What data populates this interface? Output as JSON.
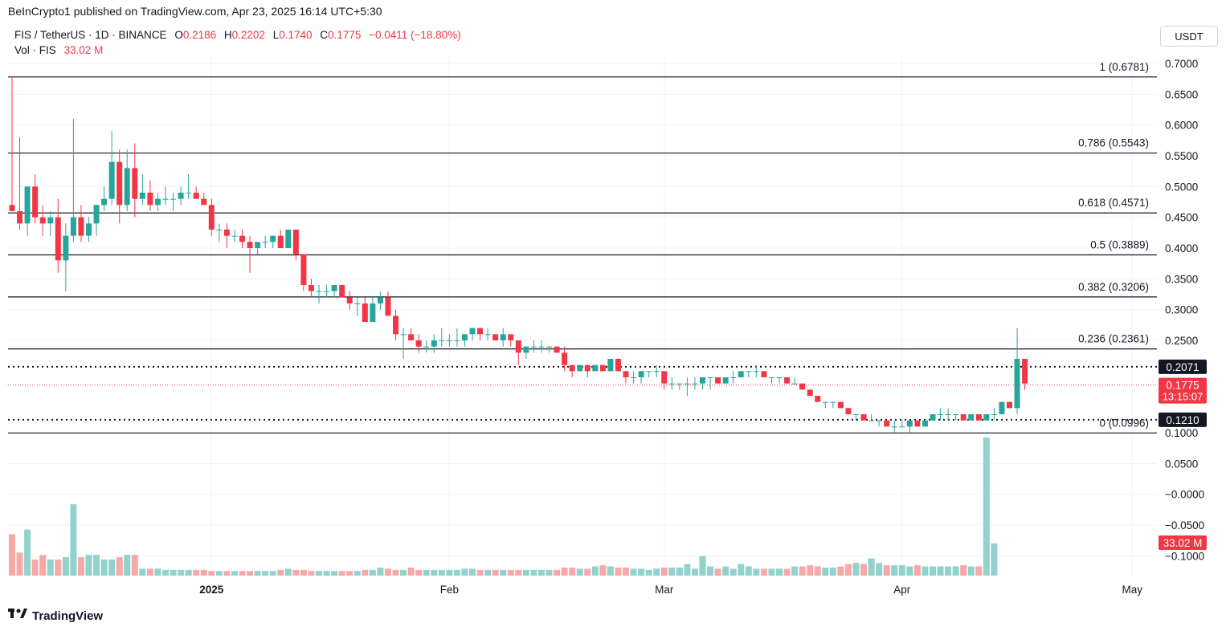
{
  "header": {
    "publisher": "BeInCrypto1 published on TradingView.com, Apr 23, 2025 16:14 UTC+5:30"
  },
  "legend": {
    "symbol": "FIS / TetherUS · 1D · BINANCE",
    "o_label": "O",
    "o": "0.2186",
    "h_label": "H",
    "h": "0.2202",
    "l_label": "L",
    "l": "0.1740",
    "c_label": "C",
    "c": "0.1775",
    "change": "−0.0411 (−18.80%)",
    "vol_label": "Vol · FIS",
    "vol": "33.02 M"
  },
  "currency_button": "USDT",
  "footer": {
    "brand": "TradingView",
    "logo_icon": "tradingview-logo-icon"
  },
  "colors": {
    "up": "#26a69a",
    "down": "#f23645",
    "up_vol": "#92d2cc",
    "down_vol": "#f7a9a7",
    "grid": "#f0f3fa"
  },
  "chart_data": {
    "type": "candlestick",
    "y_ticks": [
      "0.7000",
      "0.6500",
      "0.6000",
      "0.5500",
      "0.5000",
      "0.4500",
      "0.4000",
      "0.3500",
      "0.3000",
      "0.2500",
      "0.1000",
      "0.0500",
      "−0.0000",
      "−0.0500",
      "−0.1000"
    ],
    "x_ticks": [
      {
        "label": "2025",
        "date": "2025-01-01",
        "bold": true
      },
      {
        "label": "Feb",
        "date": "2025-02-01",
        "bold": false
      },
      {
        "label": "Mar",
        "date": "2025-03-01",
        "bold": false
      },
      {
        "label": "Apr",
        "date": "2025-04-01",
        "bold": false
      },
      {
        "label": "May",
        "date": "2025-05-01",
        "bold": false
      }
    ],
    "fib_levels": [
      {
        "label": "1 (0.6781)",
        "value": 0.6781
      },
      {
        "label": "0.786 (0.5543)",
        "value": 0.5543
      },
      {
        "label": "0.618 (0.4571)",
        "value": 0.4571
      },
      {
        "label": "0.5 (0.3889)",
        "value": 0.3889
      },
      {
        "label": "0.382 (0.3206)",
        "value": 0.3206
      },
      {
        "label": "0.236 (0.2361)",
        "value": 0.2361
      },
      {
        "label": "0 (0.0996)",
        "value": 0.0996
      }
    ],
    "support_resistance": [
      {
        "label": "0.2071",
        "value": 0.2071
      },
      {
        "label": "0.1210",
        "value": 0.121
      }
    ],
    "last_price": {
      "label": "0.1775",
      "value": 0.1775,
      "countdown": "13:15:07"
    },
    "volume_label": "33.02 M",
    "start_date": "2024-12-06",
    "candles": [
      [
        0.47,
        0.68,
        0.46,
        0.46
      ],
      [
        0.46,
        0.58,
        0.43,
        0.44
      ],
      [
        0.44,
        0.5,
        0.42,
        0.5
      ],
      [
        0.5,
        0.52,
        0.44,
        0.45
      ],
      [
        0.45,
        0.47,
        0.42,
        0.44
      ],
      [
        0.44,
        0.46,
        0.42,
        0.45
      ],
      [
        0.45,
        0.48,
        0.36,
        0.38
      ],
      [
        0.38,
        0.44,
        0.33,
        0.42
      ],
      [
        0.42,
        0.61,
        0.41,
        0.45
      ],
      [
        0.45,
        0.47,
        0.41,
        0.42
      ],
      [
        0.42,
        0.45,
        0.41,
        0.44
      ],
      [
        0.44,
        0.47,
        0.42,
        0.47
      ],
      [
        0.47,
        0.5,
        0.46,
        0.48
      ],
      [
        0.48,
        0.59,
        0.47,
        0.54
      ],
      [
        0.54,
        0.56,
        0.44,
        0.47
      ],
      [
        0.47,
        0.56,
        0.46,
        0.53
      ],
      [
        0.53,
        0.57,
        0.45,
        0.48
      ],
      [
        0.48,
        0.52,
        0.47,
        0.49
      ],
      [
        0.49,
        0.51,
        0.46,
        0.47
      ],
      [
        0.47,
        0.49,
        0.46,
        0.48
      ],
      [
        0.48,
        0.5,
        0.47,
        0.48
      ],
      [
        0.48,
        0.49,
        0.46,
        0.48
      ],
      [
        0.48,
        0.5,
        0.47,
        0.49
      ],
      [
        0.49,
        0.52,
        0.48,
        0.49
      ],
      [
        0.49,
        0.5,
        0.48,
        0.48
      ],
      [
        0.48,
        0.49,
        0.47,
        0.47
      ],
      [
        0.47,
        0.48,
        0.42,
        0.43
      ],
      [
        0.43,
        0.44,
        0.41,
        0.43
      ],
      [
        0.43,
        0.44,
        0.4,
        0.42
      ],
      [
        0.42,
        0.43,
        0.41,
        0.42
      ],
      [
        0.42,
        0.43,
        0.4,
        0.41
      ],
      [
        0.41,
        0.42,
        0.36,
        0.4
      ],
      [
        0.4,
        0.41,
        0.39,
        0.41
      ],
      [
        0.41,
        0.42,
        0.4,
        0.41
      ],
      [
        0.41,
        0.42,
        0.4,
        0.42
      ],
      [
        0.42,
        0.43,
        0.4,
        0.4
      ],
      [
        0.4,
        0.43,
        0.4,
        0.43
      ],
      [
        0.43,
        0.43,
        0.38,
        0.39
      ],
      [
        0.39,
        0.39,
        0.33,
        0.34
      ],
      [
        0.34,
        0.35,
        0.32,
        0.33
      ],
      [
        0.33,
        0.34,
        0.31,
        0.33
      ],
      [
        0.33,
        0.34,
        0.32,
        0.33
      ],
      [
        0.33,
        0.34,
        0.32,
        0.34
      ],
      [
        0.34,
        0.34,
        0.32,
        0.32
      ],
      [
        0.32,
        0.33,
        0.3,
        0.31
      ],
      [
        0.31,
        0.32,
        0.29,
        0.31
      ],
      [
        0.31,
        0.32,
        0.28,
        0.28
      ],
      [
        0.28,
        0.32,
        0.28,
        0.31
      ],
      [
        0.31,
        0.33,
        0.3,
        0.32
      ],
      [
        0.32,
        0.33,
        0.29,
        0.29
      ],
      [
        0.29,
        0.3,
        0.25,
        0.26
      ],
      [
        0.26,
        0.27,
        0.22,
        0.26
      ],
      [
        0.26,
        0.27,
        0.25,
        0.25
      ],
      [
        0.25,
        0.26,
        0.23,
        0.24
      ],
      [
        0.24,
        0.25,
        0.23,
        0.24
      ],
      [
        0.24,
        0.26,
        0.23,
        0.25
      ],
      [
        0.25,
        0.27,
        0.24,
        0.25
      ],
      [
        0.25,
        0.26,
        0.24,
        0.25
      ],
      [
        0.25,
        0.27,
        0.24,
        0.25
      ],
      [
        0.25,
        0.26,
        0.24,
        0.26
      ],
      [
        0.26,
        0.27,
        0.25,
        0.27
      ],
      [
        0.27,
        0.27,
        0.25,
        0.26
      ],
      [
        0.26,
        0.27,
        0.25,
        0.26
      ],
      [
        0.26,
        0.26,
        0.25,
        0.25
      ],
      [
        0.25,
        0.27,
        0.24,
        0.26
      ],
      [
        0.26,
        0.26,
        0.24,
        0.25
      ],
      [
        0.25,
        0.25,
        0.21,
        0.23
      ],
      [
        0.23,
        0.24,
        0.22,
        0.24
      ],
      [
        0.24,
        0.25,
        0.23,
        0.24
      ],
      [
        0.24,
        0.25,
        0.23,
        0.24
      ],
      [
        0.24,
        0.24,
        0.23,
        0.24
      ],
      [
        0.24,
        0.24,
        0.23,
        0.23
      ],
      [
        0.23,
        0.24,
        0.2,
        0.21
      ],
      [
        0.21,
        0.21,
        0.19,
        0.2
      ],
      [
        0.2,
        0.21,
        0.2,
        0.21
      ],
      [
        0.21,
        0.21,
        0.19,
        0.2
      ],
      [
        0.2,
        0.21,
        0.2,
        0.21
      ],
      [
        0.21,
        0.21,
        0.2,
        0.2
      ],
      [
        0.2,
        0.22,
        0.2,
        0.22
      ],
      [
        0.22,
        0.22,
        0.2,
        0.2
      ],
      [
        0.2,
        0.2,
        0.18,
        0.19
      ],
      [
        0.19,
        0.2,
        0.18,
        0.19
      ],
      [
        0.19,
        0.2,
        0.18,
        0.2
      ],
      [
        0.2,
        0.2,
        0.19,
        0.2
      ],
      [
        0.2,
        0.21,
        0.19,
        0.2
      ],
      [
        0.2,
        0.2,
        0.17,
        0.18
      ],
      [
        0.18,
        0.19,
        0.17,
        0.18
      ],
      [
        0.18,
        0.18,
        0.17,
        0.18
      ],
      [
        0.18,
        0.19,
        0.16,
        0.18
      ],
      [
        0.18,
        0.19,
        0.17,
        0.18
      ],
      [
        0.18,
        0.19,
        0.17,
        0.19
      ],
      [
        0.19,
        0.19,
        0.17,
        0.19
      ],
      [
        0.19,
        0.19,
        0.18,
        0.18
      ],
      [
        0.18,
        0.19,
        0.18,
        0.19
      ],
      [
        0.19,
        0.2,
        0.18,
        0.19
      ],
      [
        0.19,
        0.2,
        0.19,
        0.2
      ],
      [
        0.2,
        0.2,
        0.19,
        0.2
      ],
      [
        0.2,
        0.21,
        0.19,
        0.2
      ],
      [
        0.2,
        0.2,
        0.19,
        0.19
      ],
      [
        0.19,
        0.19,
        0.18,
        0.19
      ],
      [
        0.19,
        0.19,
        0.18,
        0.19
      ],
      [
        0.19,
        0.19,
        0.18,
        0.18
      ],
      [
        0.18,
        0.19,
        0.18,
        0.18
      ],
      [
        0.18,
        0.18,
        0.17,
        0.17
      ],
      [
        0.17,
        0.17,
        0.16,
        0.16
      ],
      [
        0.16,
        0.16,
        0.15,
        0.15
      ],
      [
        0.15,
        0.15,
        0.14,
        0.15
      ],
      [
        0.15,
        0.15,
        0.14,
        0.15
      ],
      [
        0.15,
        0.15,
        0.14,
        0.14
      ],
      [
        0.14,
        0.14,
        0.13,
        0.13
      ],
      [
        0.13,
        0.13,
        0.12,
        0.13
      ],
      [
        0.13,
        0.13,
        0.12,
        0.12
      ],
      [
        0.12,
        0.13,
        0.12,
        0.12
      ],
      [
        0.12,
        0.12,
        0.11,
        0.12
      ],
      [
        0.12,
        0.12,
        0.11,
        0.11
      ],
      [
        0.11,
        0.12,
        0.1,
        0.11
      ],
      [
        0.11,
        0.12,
        0.11,
        0.11
      ],
      [
        0.11,
        0.12,
        0.1,
        0.12
      ],
      [
        0.12,
        0.12,
        0.11,
        0.11
      ],
      [
        0.11,
        0.12,
        0.11,
        0.12
      ],
      [
        0.12,
        0.13,
        0.12,
        0.13
      ],
      [
        0.13,
        0.14,
        0.12,
        0.13
      ],
      [
        0.13,
        0.14,
        0.12,
        0.13
      ],
      [
        0.13,
        0.13,
        0.12,
        0.13
      ],
      [
        0.13,
        0.13,
        0.12,
        0.12
      ],
      [
        0.12,
        0.13,
        0.12,
        0.13
      ],
      [
        0.13,
        0.13,
        0.12,
        0.12
      ],
      [
        0.12,
        0.13,
        0.12,
        0.13
      ],
      [
        0.13,
        0.14,
        0.12,
        0.13
      ],
      [
        0.13,
        0.15,
        0.13,
        0.15
      ],
      [
        0.15,
        0.15,
        0.14,
        0.14
      ],
      [
        0.14,
        0.27,
        0.13,
        0.22
      ],
      [
        0.22,
        0.22,
        0.17,
        0.18
      ]
    ],
    "volumes": [
      18,
      10,
      20,
      7,
      9,
      7,
      7,
      8,
      31,
      8,
      9,
      9,
      7,
      7,
      8,
      9,
      9,
      3,
      3,
      3,
      2.5,
      2.5,
      2.5,
      2.5,
      2.5,
      2.5,
      2,
      2,
      2,
      2,
      2,
      2,
      2,
      2,
      2,
      2.5,
      3,
      2.5,
      2.5,
      2,
      2,
      2,
      2,
      2,
      2,
      2,
      2.5,
      2.5,
      3.5,
      3,
      2.5,
      2.5,
      3.5,
      2.5,
      2.5,
      2.5,
      2.5,
      2.5,
      2.5,
      3,
      3,
      2.5,
      2.5,
      2.5,
      2.5,
      2.5,
      2.5,
      2.5,
      2.5,
      2.5,
      2.5,
      2.5,
      3.5,
      3.5,
      3,
      3,
      4,
      4.5,
      4,
      3.5,
      3.5,
      3,
      3,
      2.5,
      3,
      3.5,
      3.5,
      3.5,
      5,
      3,
      8.5,
      4,
      3,
      4,
      3,
      5,
      4,
      3,
      3,
      3,
      3,
      3,
      4,
      4,
      4.5,
      4,
      3.5,
      3.5,
      4,
      5,
      5.5,
      5,
      7.5,
      5.5,
      4.5,
      4.5,
      4.5,
      4,
      4.5,
      4,
      4,
      4,
      4,
      4,
      4.5,
      4,
      4,
      60,
      14
    ],
    "volume_scale_max": 60
  }
}
